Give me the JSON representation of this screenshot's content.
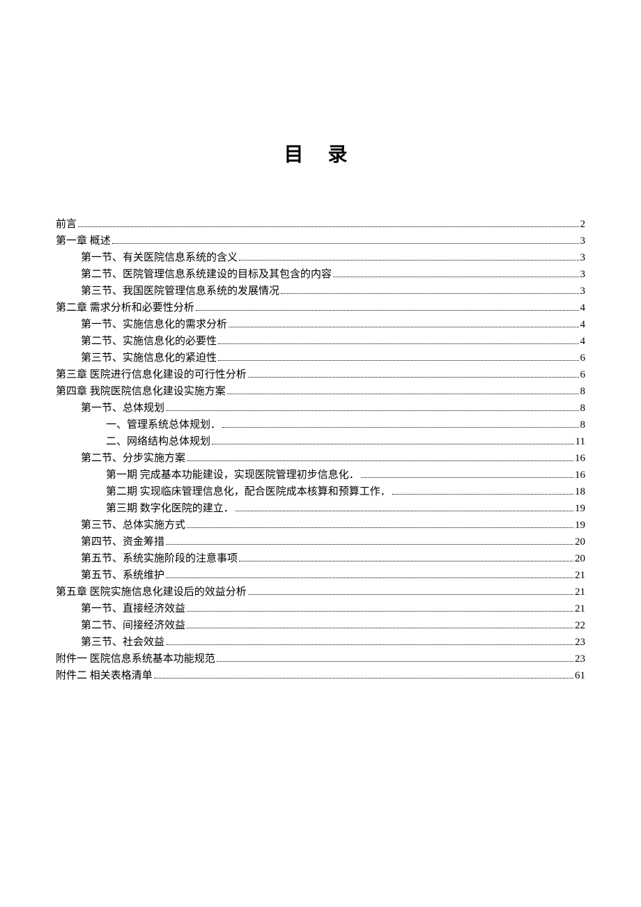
{
  "title": "目 录",
  "entries": [
    {
      "text": "前言",
      "page": "2",
      "indent": 0
    },
    {
      "text": "第一章  概述",
      "page": "3",
      "indent": 0
    },
    {
      "text": "第一节、有关医院信息系统的含义",
      "page": "3",
      "indent": 1
    },
    {
      "text": "第二节、医院管理信息系统建设的目标及其包含的内容",
      "page": "3",
      "indent": 1
    },
    {
      "text": "第三节、我国医院管理信息系统的发展情况",
      "page": "3",
      "indent": 1
    },
    {
      "text": "第二章   需求分析和必要性分析",
      "page": "4",
      "indent": 0
    },
    {
      "text": "第一节、实施信息化的需求分析",
      "page": "4",
      "indent": 1
    },
    {
      "text": "第二节、实施信息化的必要性",
      "page": "4",
      "indent": 1
    },
    {
      "text": "第三节、实施信息化的紧迫性",
      "page": "6",
      "indent": 1
    },
    {
      "text": "第三章   医院进行信息化建设的可行性分析",
      "page": "6",
      "indent": 0
    },
    {
      "text": "第四章   我院医院信息化建设实施方案",
      "page": "8",
      "indent": 0
    },
    {
      "text": "第一节、总体规划",
      "page": "8",
      "indent": 1
    },
    {
      "text": "一、管理系统总体规划．",
      "page": "8",
      "indent": 2
    },
    {
      "text": "二、网络结构总体规划",
      "page": "11",
      "indent": 2
    },
    {
      "text": "第二节、分步实施方案",
      "page": "16",
      "indent": 1
    },
    {
      "text": "第一期  完成基本功能建设，实现医院管理初步信息化．",
      "page": "16",
      "indent": 2
    },
    {
      "text": "第二期  实现临床管理信息化，配合医院成本核算和预算工作．",
      "page": "18",
      "indent": 2
    },
    {
      "text": "第三期  数字化医院的建立．",
      "page": "19",
      "indent": 2
    },
    {
      "text": "第三节、总体实施方式",
      "page": "19",
      "indent": 1
    },
    {
      "text": "第四节、资金筹措",
      "page": "20",
      "indent": 1
    },
    {
      "text": "第五节、系统实施阶段的注意事项",
      "page": "20",
      "indent": 1
    },
    {
      "text": "第五节、系统维护",
      "page": "21",
      "indent": 1
    },
    {
      "text": "第五章   医院实施信息化建设后的效益分析",
      "page": "21",
      "indent": 0
    },
    {
      "text": "第一节、直接经济效益",
      "page": "21",
      "indent": 1
    },
    {
      "text": "第二节、间接经济效益",
      "page": "22",
      "indent": 1
    },
    {
      "text": "第三节、社会效益",
      "page": "23",
      "indent": 1
    },
    {
      "text": "附件一   医院信息系统基本功能规范",
      "page": "23",
      "indent": 0
    },
    {
      "text": "附件二   相关表格清单",
      "page": "61",
      "indent": 0
    }
  ]
}
